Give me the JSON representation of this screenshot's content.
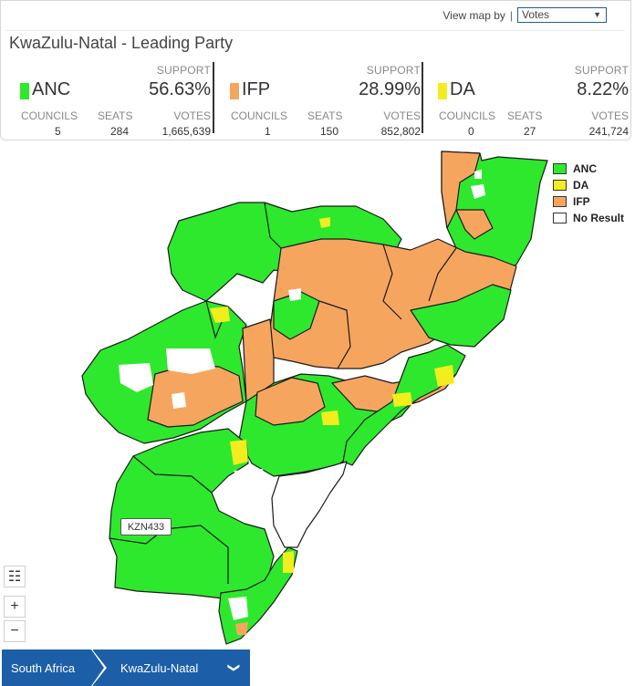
{
  "header": {
    "view_by_label": "View map by",
    "view_by_separator": "|",
    "view_by_value": "Votes",
    "title": "KwaZulu-Natal - Leading Party"
  },
  "column_labels": {
    "support": "SUPPORT",
    "councils": "COUNCILS",
    "seats": "SEATS",
    "votes": "VOTES"
  },
  "parties": [
    {
      "name": "ANC",
      "support": "56.63%",
      "councils": "5",
      "seats": "284",
      "votes": "1,665,639",
      "color": "#2ee82e"
    },
    {
      "name": "IFP",
      "support": "28.99%",
      "councils": "1",
      "seats": "150",
      "votes": "852,802",
      "color": "#f6a55f"
    },
    {
      "name": "DA",
      "support": "8.22%",
      "councils": "0",
      "seats": "27",
      "votes": "241,724",
      "color": "#f2ee1d"
    }
  ],
  "legend": [
    {
      "label": "ANC",
      "color": "#2ee82e"
    },
    {
      "label": "DA",
      "color": "#f2ee1d"
    },
    {
      "label": "IFP",
      "color": "#f6a55f"
    },
    {
      "label": "No Result",
      "color": "#ffffff"
    }
  ],
  "map": {
    "tooltip": "KZN433",
    "colors": {
      "anc": "#2ee82e",
      "ifp": "#f6a55f",
      "da": "#f2ee1d",
      "none": "#ffffff",
      "border": "#1a1a1a"
    }
  },
  "controls": {
    "list_icon": "list-icon",
    "zoom_in": "+",
    "zoom_out": "−"
  },
  "breadcrumb": {
    "items": [
      "South Africa",
      "KwaZulu-Natal"
    ],
    "chevron": "❯"
  }
}
